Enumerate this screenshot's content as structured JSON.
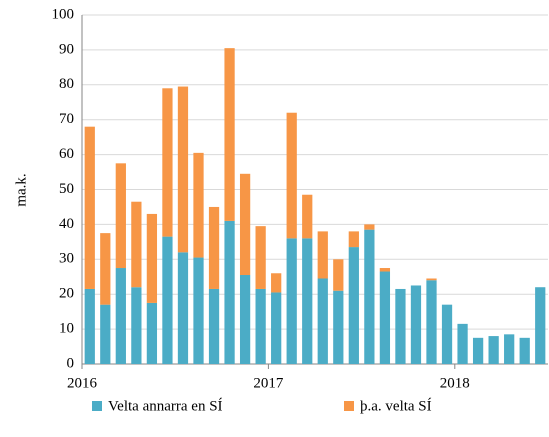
{
  "chart_data": {
    "type": "stacked_bar",
    "y_label": "ma.k.",
    "categories": [
      "2016",
      null,
      null,
      null,
      null,
      null,
      null,
      null,
      null,
      null,
      null,
      null,
      "2017",
      null,
      null,
      null,
      null,
      null,
      null,
      null,
      null,
      null,
      null,
      null,
      "2018",
      null,
      null,
      null,
      null,
      null
    ],
    "series": [
      {
        "name": "Velta annarra en SÍ",
        "color": "#4bacc6",
        "values": [
          21.5,
          17,
          27.5,
          22,
          17.5,
          36.5,
          32,
          30.5,
          21.5,
          41,
          25.5,
          21.5,
          20.5,
          36,
          36,
          24.5,
          21,
          33.5,
          38.5,
          26.5,
          21.5,
          22.5,
          24,
          17,
          11.5,
          7.5,
          8,
          8.5,
          7.5,
          22
        ]
      },
      {
        "name": "þ.a. velta SÍ",
        "color": "#f79646",
        "values": [
          46.5,
          20.5,
          30,
          24.5,
          25.5,
          42.5,
          47.5,
          30,
          23.5,
          49.5,
          29,
          18,
          5.5,
          36,
          12.5,
          13.5,
          9,
          4.5,
          1.5,
          1,
          0,
          0,
          0.5,
          0,
          0,
          0,
          0,
          0,
          0,
          0
        ]
      }
    ],
    "ylim": [
      0,
      100
    ],
    "yticks": [
      0,
      10,
      20,
      30,
      40,
      50,
      60,
      70,
      80,
      90,
      100
    ],
    "grid": true,
    "legend": "bottom"
  }
}
